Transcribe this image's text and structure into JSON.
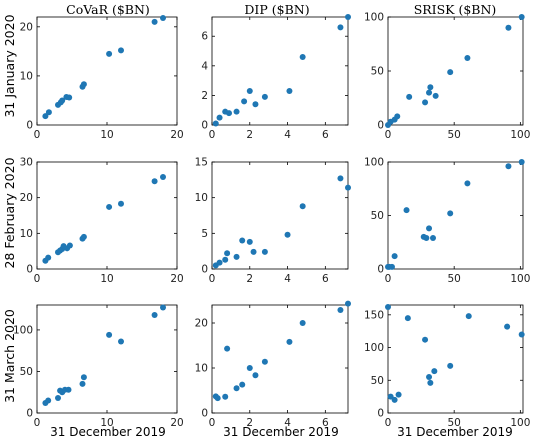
{
  "labels": {
    "col_titles": [
      "CoVaR ($BN)",
      "DIP ($BN)",
      "SRISK ($BN)"
    ],
    "row_titles": [
      "31 January 2020",
      "28 February 2020",
      "31 March 2020"
    ],
    "x_axis_label": "31 December 2019"
  },
  "colors": {
    "marker": "#1f77b4",
    "axes": "#000000"
  },
  "chart_data": [
    {
      "type": "scatter",
      "title": "CoVaR ($BN)",
      "ylabel": "31 January 2020",
      "xlim": [
        0,
        20
      ],
      "ylim": [
        0,
        22
      ],
      "xticks": [
        0,
        10,
        20
      ],
      "yticks": [
        0,
        10,
        20
      ],
      "x": [
        1.2,
        1.7,
        3.0,
        3.4,
        3.6,
        4.2,
        4.6,
        6.5,
        6.7,
        10.3,
        12.0,
        16.8,
        18.0
      ],
      "y": [
        1.8,
        2.6,
        4.1,
        4.6,
        5.0,
        5.7,
        5.6,
        7.8,
        8.3,
        14.5,
        15.2,
        21.0,
        21.8
      ]
    },
    {
      "type": "scatter",
      "title": "DIP ($BN)",
      "ylabel": "",
      "xlim": [
        0,
        7.2
      ],
      "ylim": [
        0,
        7.3
      ],
      "xticks": [
        0,
        2,
        4,
        6
      ],
      "yticks": [
        0,
        2,
        4,
        6
      ],
      "x": [
        0.2,
        0.4,
        0.7,
        0.9,
        1.3,
        1.7,
        2.0,
        2.3,
        2.8,
        4.1,
        4.8,
        6.8,
        7.2
      ],
      "y": [
        0.1,
        0.5,
        0.9,
        0.8,
        0.9,
        1.6,
        2.3,
        1.4,
        1.9,
        2.3,
        4.6,
        6.6,
        7.3
      ]
    },
    {
      "type": "scatter",
      "title": "SRISK ($BN)",
      "ylabel": "",
      "xlim": [
        0,
        102
      ],
      "ylim": [
        0,
        100
      ],
      "xticks": [
        0,
        50,
        100
      ],
      "yticks": [
        0,
        50,
        100
      ],
      "x": [
        0,
        2,
        5,
        7,
        16,
        28,
        31,
        32,
        36,
        47,
        60,
        91,
        101
      ],
      "y": [
        0,
        3,
        5,
        8,
        26,
        21,
        30,
        35,
        27,
        49,
        62,
        90,
        100
      ]
    },
    {
      "type": "scatter",
      "title": "",
      "ylabel": "28 February 2020",
      "xlim": [
        0,
        20
      ],
      "ylim": [
        0,
        30
      ],
      "xticks": [
        0,
        10,
        20
      ],
      "yticks": [
        0,
        10,
        20,
        30
      ],
      "x": [
        1.2,
        1.6,
        3.0,
        3.3,
        3.6,
        3.8,
        4.3,
        4.7,
        6.5,
        6.7,
        10.3,
        12.0,
        16.8,
        18.0
      ],
      "y": [
        2.3,
        3.2,
        4.7,
        5.2,
        5.6,
        6.4,
        5.8,
        6.6,
        8.5,
        9.0,
        17.4,
        18.3,
        24.6,
        25.8
      ]
    },
    {
      "type": "scatter",
      "title": "",
      "ylabel": "",
      "xlim": [
        0,
        7.2
      ],
      "ylim": [
        0,
        15
      ],
      "xticks": [
        0,
        2,
        4,
        6
      ],
      "yticks": [
        0,
        5,
        10,
        15
      ],
      "x": [
        0.2,
        0.4,
        0.7,
        0.8,
        1.3,
        1.6,
        2.0,
        2.2,
        2.8,
        4.0,
        4.8,
        6.8,
        7.2
      ],
      "y": [
        0.5,
        0.9,
        1.3,
        2.2,
        1.7,
        4.0,
        3.8,
        2.4,
        2.4,
        4.8,
        8.8,
        12.7,
        11.4
      ]
    },
    {
      "type": "scatter",
      "title": "",
      "ylabel": "",
      "xlim": [
        0,
        102
      ],
      "ylim": [
        0,
        100
      ],
      "xticks": [
        0,
        50,
        100
      ],
      "yticks": [
        0,
        50,
        100
      ],
      "x": [
        0,
        1,
        3,
        5,
        14,
        27,
        29,
        31,
        34,
        47,
        60,
        91,
        101
      ],
      "y": [
        2,
        2,
        2,
        12,
        55,
        30,
        29,
        38,
        29,
        52,
        80,
        96,
        100
      ]
    },
    {
      "type": "scatter",
      "title": "",
      "ylabel": "31 March 2020",
      "xlim": [
        0,
        20
      ],
      "ylim": [
        0,
        130
      ],
      "xticks": [
        0,
        10,
        20
      ],
      "yticks": [
        0,
        50,
        100
      ],
      "x": [
        1.2,
        1.6,
        3.0,
        3.3,
        3.6,
        4.0,
        4.5,
        6.5,
        6.7,
        10.3,
        12.0,
        16.8,
        18.0
      ],
      "y": [
        12,
        15,
        18,
        27,
        25,
        28,
        28,
        35,
        43,
        94,
        86,
        118,
        127
      ]
    },
    {
      "type": "scatter",
      "title": "",
      "ylabel": "",
      "xlim": [
        0,
        7.2
      ],
      "ylim": [
        0,
        24
      ],
      "xticks": [
        0,
        2,
        4,
        6
      ],
      "yticks": [
        0,
        10,
        20
      ],
      "x": [
        0.2,
        0.3,
        0.7,
        0.8,
        1.3,
        1.6,
        2.0,
        2.3,
        2.8,
        4.1,
        4.8,
        6.8,
        7.2
      ],
      "y": [
        3.7,
        3.3,
        3.6,
        14.3,
        5.5,
        6.3,
        10.0,
        8.4,
        11.4,
        15.8,
        20.0,
        22.9,
        24.3
      ]
    },
    {
      "type": "scatter",
      "title": "",
      "ylabel": "",
      "xlim": [
        0,
        102
      ],
      "ylim": [
        0,
        165
      ],
      "xticks": [
        0,
        50,
        100
      ],
      "yticks": [
        0,
        50,
        100,
        150
      ],
      "x": [
        0,
        2,
        5,
        8,
        15,
        28,
        31,
        32,
        35,
        47,
        61,
        90,
        101
      ],
      "y": [
        162,
        25,
        20,
        28,
        145,
        112,
        55,
        46,
        64,
        72,
        148,
        132,
        120
      ]
    }
  ]
}
